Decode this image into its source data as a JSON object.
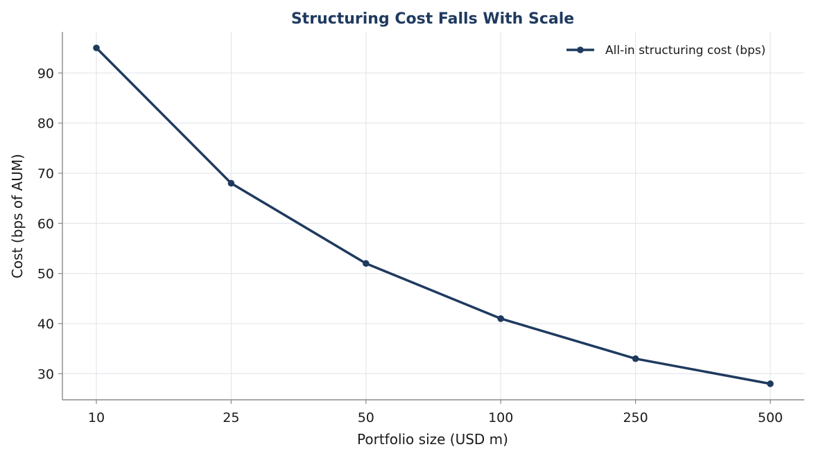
{
  "chart_data": {
    "type": "line",
    "title": "Structuring Cost Falls With Scale",
    "xlabel": "Portfolio size (USD m)",
    "ylabel": "Cost (bps of AUM)",
    "categories": [
      "10",
      "25",
      "50",
      "100",
      "250",
      "500"
    ],
    "series": [
      {
        "name": "All-in structuring cost (bps)",
        "values": [
          95,
          68,
          52,
          41,
          33,
          28
        ],
        "color": "#1f3a5f"
      }
    ],
    "ylim": [
      24.8,
      98.2
    ],
    "yticks": [
      30,
      40,
      50,
      60,
      70,
      80,
      90
    ],
    "grid": true,
    "legend_position": "top-right",
    "title_color": "#1f3a5f"
  }
}
